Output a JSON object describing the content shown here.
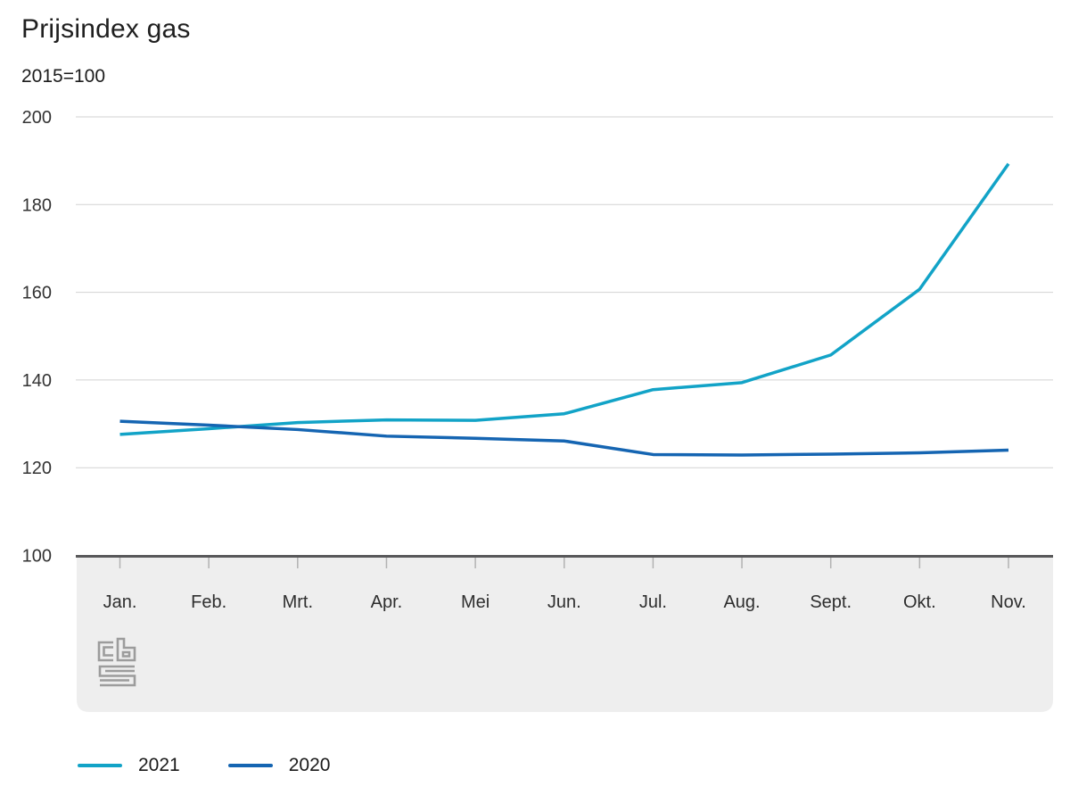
{
  "chart": {
    "title": "Prijsindex gas",
    "subtitle": "2015=100"
  },
  "chart_data": {
    "type": "line",
    "title": "Prijsindex gas",
    "subtitle": "2015=100",
    "categories": [
      "Jan.",
      "Feb.",
      "Mrt.",
      "Apr.",
      "Mei",
      "Jun.",
      "Jul.",
      "Aug.",
      "Sept.",
      "Okt.",
      "Nov."
    ],
    "series": [
      {
        "name": "2021",
        "color": "#12a3c7",
        "values": [
          127.6,
          128.9,
          130.3,
          130.9,
          130.8,
          132.3,
          137.8,
          139.4,
          145.7,
          160.7,
          189.3
        ]
      },
      {
        "name": "2020",
        "color": "#1565b2",
        "values": [
          130.6,
          129.7,
          128.7,
          127.2,
          126.7,
          126.1,
          123.0,
          122.9,
          123.1,
          123.4,
          124.0
        ]
      }
    ],
    "ylim": [
      100,
      200
    ],
    "yticks": [
      100,
      120,
      140,
      160,
      180,
      200
    ],
    "grid": "horizontal-only",
    "legend_position": "bottom-left",
    "x_band_color": "#eeeeee",
    "gridline_color": "#d2d2d2",
    "axis_color": "#58585a",
    "tick_color": "#b2b2b2",
    "branding": "cbs-logo"
  }
}
